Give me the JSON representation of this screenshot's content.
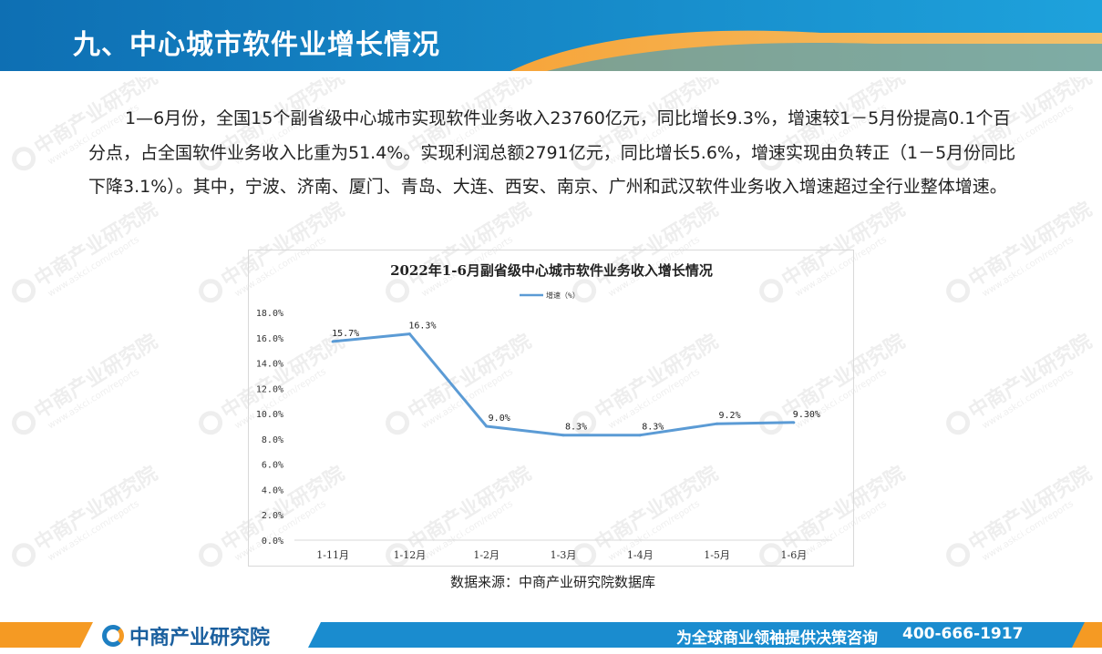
{
  "header": {
    "title": "九、中心城市软件业增长情况"
  },
  "intro": {
    "text": "1—6月份，全国15个副省级中心城市实现软件业务收入23760亿元，同比增长9.3%，增速较1－5月份提高0.1个百分点，占全国软件业务收入比重为51.4%。实现利润总额2791亿元，同比增长5.6%，增速实现由负转正（1－5月份同比下降3.1%）。其中，宁波、济南、厦门、青岛、大连、西安、南京、广州和武汉软件业务收入增速超过全行业整体增速。"
  },
  "watermark": {
    "brand": "中商产业研究院",
    "url": "www.askci.com/reports"
  },
  "chart_data": {
    "type": "line",
    "title": "2022年1-6月副省级中心城市软件业务收入增长情况",
    "categories": [
      "1-11月",
      "1-12月",
      "1-2月",
      "1-3月",
      "1-4月",
      "1-5月",
      "1-6月"
    ],
    "series": [
      {
        "name": "增速（%）",
        "values": [
          15.7,
          16.3,
          9.0,
          8.3,
          8.3,
          9.2,
          9.3
        ],
        "labels": [
          "15.7%",
          "16.3%",
          "9.0%",
          "8.3%",
          "8.3%",
          "9.2%",
          "9.30%"
        ],
        "color": "#5b9bd5"
      }
    ],
    "yticks": [
      "0.0%",
      "2.0%",
      "4.0%",
      "6.0%",
      "8.0%",
      "10.0%",
      "12.0%",
      "14.0%",
      "16.0%",
      "18.0%"
    ],
    "ylim": [
      0,
      18
    ],
    "legend": "top",
    "grid": false
  },
  "source": "数据来源：中商产业研究院数据库",
  "footer": {
    "brand": "中商产业研究院",
    "slogan": "为全球商业领袖提供决策咨询",
    "phone": "400-666-1917"
  },
  "colors": {
    "header_blue": "#1b8fce",
    "accent_orange": "#f59a23",
    "footer_blue": "#1a8ccf"
  }
}
